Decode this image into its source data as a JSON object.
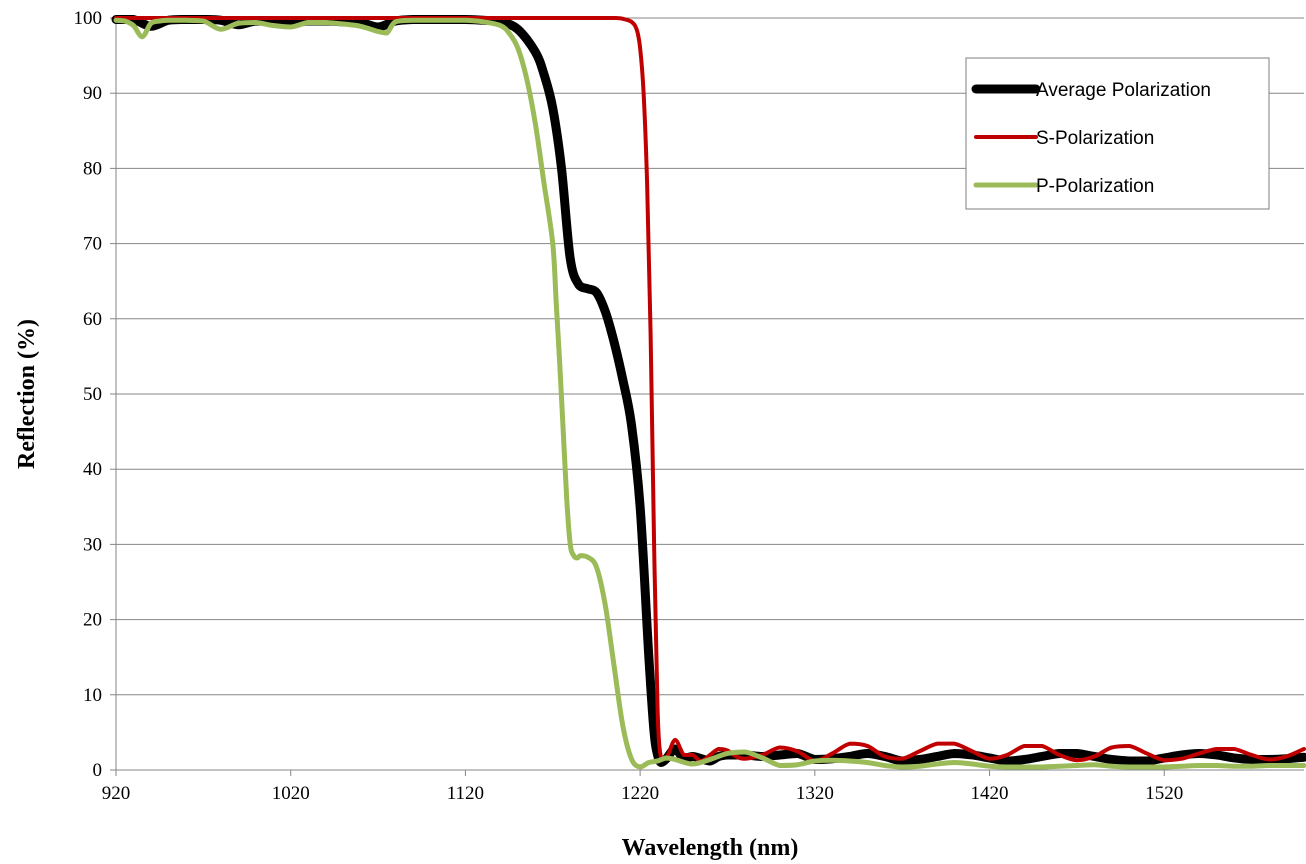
{
  "chart_data": {
    "type": "line",
    "title": "",
    "xlabel": "Wavelength (nm)",
    "ylabel": "Reflection (%)",
    "xlim": [
      920,
      1600
    ],
    "ylim": [
      0,
      100
    ],
    "x_ticks": [
      "920",
      "1020",
      "1120",
      "1220",
      "1320",
      "1420",
      "1520"
    ],
    "y_ticks": [
      "0",
      "10",
      "20",
      "30",
      "40",
      "50",
      "60",
      "70",
      "80",
      "90",
      "100"
    ],
    "grid": "horizontal",
    "legend_position": "top-right",
    "series": [
      {
        "name": "Average Polarization",
        "color": "#000000",
        "x": [
          920,
          930,
          940,
          950,
          960,
          970,
          980,
          990,
          1000,
          1010,
          1020,
          1030,
          1040,
          1050,
          1060,
          1070,
          1080,
          1090,
          1100,
          1110,
          1120,
          1130,
          1140,
          1150,
          1160,
          1165,
          1170,
          1175,
          1180,
          1185,
          1190,
          1195,
          1200,
          1205,
          1210,
          1215,
          1220,
          1225,
          1228,
          1230,
          1232,
          1235,
          1240,
          1245,
          1250,
          1255,
          1260,
          1265,
          1270,
          1280,
          1290,
          1300,
          1310,
          1320,
          1330,
          1340,
          1350,
          1360,
          1370,
          1380,
          1390,
          1400,
          1410,
          1420,
          1430,
          1440,
          1450,
          1460,
          1470,
          1480,
          1490,
          1500,
          1510,
          1520,
          1530,
          1540,
          1550,
          1560,
          1570,
          1580,
          1590,
          1600
        ],
        "y": [
          99.8,
          99.8,
          98.9,
          99.7,
          99.8,
          99.8,
          99.7,
          99.1,
          99.6,
          99.5,
          99.3,
          99.6,
          99.6,
          99.5,
          99.4,
          98.8,
          99.6,
          99.8,
          99.8,
          99.8,
          99.8,
          99.7,
          99.5,
          98.5,
          95.5,
          92.5,
          88,
          80,
          68,
          64.5,
          64,
          63.5,
          61,
          57,
          52,
          46,
          35,
          15,
          5,
          2,
          1,
          1.5,
          2.8,
          1.5,
          1.8,
          1.5,
          1.2,
          1.8,
          2.0,
          2.0,
          1.8,
          2.0,
          2.2,
          1.4,
          1.5,
          1.8,
          2.2,
          1.8,
          1.2,
          1.4,
          1.8,
          2.2,
          2.0,
          1.6,
          1.2,
          1.4,
          1.8,
          2.2,
          2.2,
          1.8,
          1.4,
          1.2,
          1.2,
          1.6,
          2.0,
          2.2,
          2.0,
          1.6,
          1.4,
          1.4,
          1.5,
          1.7
        ]
      },
      {
        "name": "S-Polarization",
        "color": "#c00000",
        "x": [
          920,
          940,
          960,
          980,
          1000,
          1020,
          1040,
          1060,
          1080,
          1100,
          1120,
          1140,
          1160,
          1180,
          1190,
          1195,
          1200,
          1205,
          1210,
          1215,
          1218,
          1220,
          1222,
          1224,
          1226,
          1228,
          1230,
          1232,
          1235,
          1240,
          1245,
          1250,
          1255,
          1260,
          1265,
          1270,
          1275,
          1280,
          1290,
          1300,
          1310,
          1320,
          1330,
          1340,
          1350,
          1360,
          1370,
          1380,
          1390,
          1400,
          1410,
          1420,
          1430,
          1440,
          1450,
          1460,
          1470,
          1480,
          1490,
          1500,
          1510,
          1520,
          1530,
          1540,
          1550,
          1560,
          1570,
          1580,
          1590,
          1600
        ],
        "y": [
          100,
          100,
          100,
          100,
          100,
          100,
          100,
          100,
          100,
          100,
          100,
          100,
          100,
          100,
          100,
          100,
          100,
          100,
          99.9,
          99.5,
          98.5,
          96,
          90,
          78,
          58,
          30,
          8,
          1.5,
          1.5,
          4,
          2,
          2,
          1.2,
          2,
          2.8,
          2.6,
          1.8,
          1.5,
          2,
          3,
          2.5,
          1.2,
          2.2,
          3.5,
          3.2,
          1.8,
          1.5,
          2.5,
          3.5,
          3.5,
          2.5,
          1.5,
          2,
          3.2,
          3.2,
          2,
          1.3,
          1.8,
          3,
          3.2,
          2.2,
          1.3,
          1.5,
          2.2,
          2.8,
          2.8,
          2,
          1.4,
          1.8,
          2.8
        ]
      },
      {
        "name": "P-Polarization",
        "color": "#9bbb59",
        "x": [
          920,
          925,
          930,
          935,
          940,
          945,
          950,
          960,
          970,
          980,
          990,
          1000,
          1010,
          1020,
          1030,
          1040,
          1050,
          1060,
          1070,
          1075,
          1080,
          1090,
          1100,
          1110,
          1120,
          1130,
          1140,
          1145,
          1150,
          1155,
          1160,
          1165,
          1170,
          1172,
          1174,
          1176,
          1178,
          1180,
          1182,
          1184,
          1186,
          1190,
          1195,
          1200,
          1205,
          1210,
          1215,
          1220,
          1225,
          1230,
          1235,
          1240,
          1250,
          1260,
          1270,
          1280,
          1290,
          1300,
          1310,
          1320,
          1330,
          1340,
          1350,
          1360,
          1370,
          1380,
          1390,
          1400,
          1410,
          1420,
          1430,
          1440,
          1450,
          1460,
          1470,
          1480,
          1490,
          1500,
          1510,
          1520,
          1530,
          1540,
          1550,
          1560,
          1570,
          1580,
          1590,
          1600
        ],
        "y": [
          99.7,
          99.6,
          99,
          97.5,
          99.3,
          99.6,
          99.7,
          99.7,
          99.6,
          98.5,
          99.3,
          99.4,
          99,
          98.8,
          99.4,
          99.4,
          99.2,
          98.9,
          98.2,
          98,
          99.5,
          99.7,
          99.7,
          99.7,
          99.7,
          99.5,
          99,
          98,
          96,
          92,
          86,
          78,
          70,
          62,
          54,
          45,
          36,
          30,
          28.5,
          28.2,
          28.5,
          28.3,
          27,
          22,
          14,
          6,
          1.5,
          0.4,
          1,
          1.2,
          1.6,
          1.4,
          0.8,
          1.4,
          2.2,
          2.4,
          1.6,
          0.6,
          0.7,
          1.2,
          1.3,
          1.2,
          1.0,
          0.6,
          0.4,
          0.5,
          0.8,
          1.0,
          0.8,
          0.5,
          0.4,
          0.4,
          0.4,
          0.5,
          0.6,
          0.7,
          0.5,
          0.4,
          0.4,
          0.4,
          0.5,
          0.6,
          0.6,
          0.5,
          0.5,
          0.6,
          0.6,
          0.6
        ]
      }
    ]
  }
}
